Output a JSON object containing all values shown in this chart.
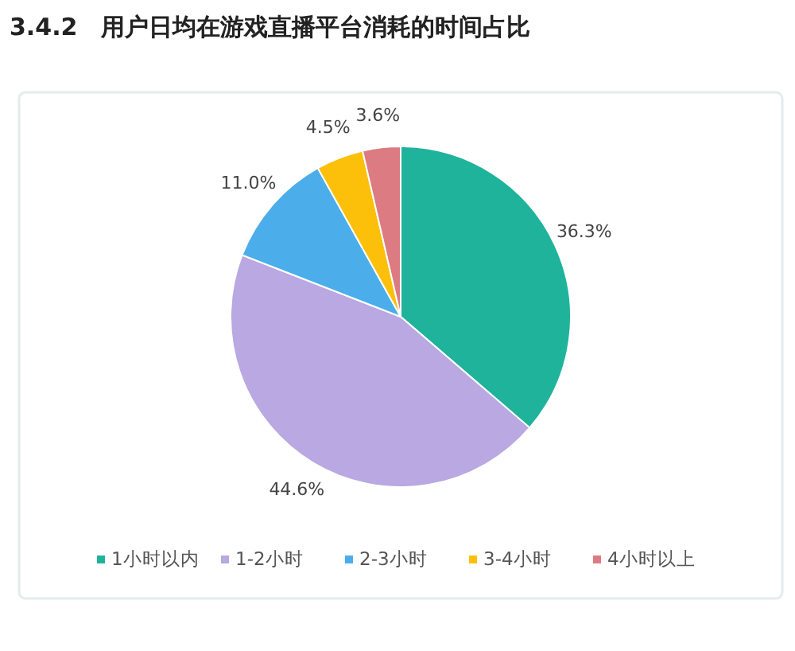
{
  "chart_data": {
    "type": "pie",
    "title": "3.4.2　用户日均在游戏直播平台消耗的时间占比",
    "categories": [
      "1小时以内",
      "1-2小时",
      "2-3小时",
      "3-4小时",
      "4小时以上"
    ],
    "values": [
      36.3,
      44.6,
      11.0,
      4.5,
      3.6
    ],
    "colors": [
      "#1fb39b",
      "#b9a8e2",
      "#4baeea",
      "#fcc00a",
      "#dc7b82"
    ],
    "value_labels": [
      "36.3%",
      "44.6%",
      "11.0%",
      "4.5%",
      "3.6%"
    ],
    "legend": "bottom"
  }
}
